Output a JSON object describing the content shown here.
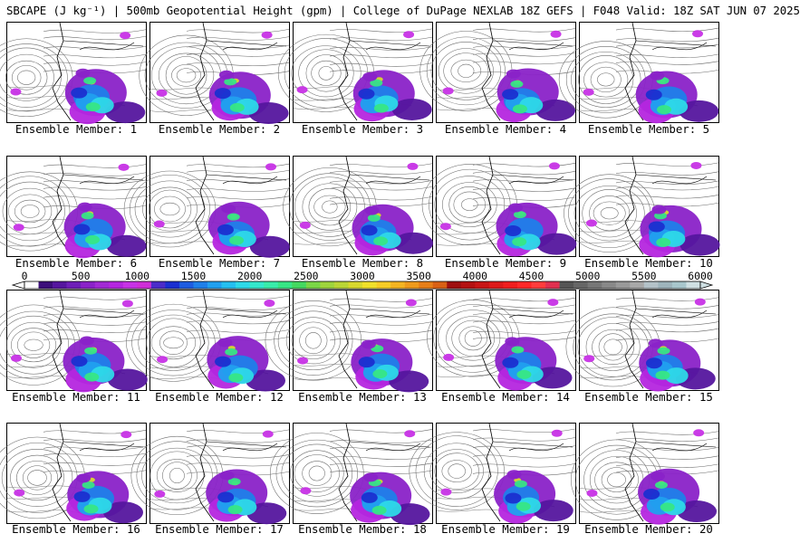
{
  "title": "SBCAPE (J kg⁻¹) | 500mb Geopotential Height (gpm) | College of DuPage NEXLAB 18Z GEFS | F048 Valid: 18Z SAT JUN 07 2025",
  "members": [
    {
      "label": "Ensemble Member: 1"
    },
    {
      "label": "Ensemble Member: 2"
    },
    {
      "label": "Ensemble Member: 3"
    },
    {
      "label": "Ensemble Member: 4"
    },
    {
      "label": "Ensemble Member: 5"
    },
    {
      "label": "Ensemble Member: 6"
    },
    {
      "label": "Ensemble Member: 7"
    },
    {
      "label": "Ensemble Member: 8"
    },
    {
      "label": "Ensemble Member: 9"
    },
    {
      "label": "Ensemble Member: 10"
    },
    {
      "label": "Ensemble Member: 11"
    },
    {
      "label": "Ensemble Member: 12"
    },
    {
      "label": "Ensemble Member: 13"
    },
    {
      "label": "Ensemble Member: 14"
    },
    {
      "label": "Ensemble Member: 15"
    },
    {
      "label": "Ensemble Member: 16"
    },
    {
      "label": "Ensemble Member: 17"
    },
    {
      "label": "Ensemble Member: 18"
    },
    {
      "label": "Ensemble Member: 19"
    },
    {
      "label": "Ensemble Member: 20"
    }
  ],
  "colorbar": {
    "ticks": [
      "0",
      "500",
      "1000",
      "1500",
      "2000",
      "2500",
      "3000",
      "3500",
      "4000",
      "4500",
      "5000",
      "5500",
      "6000"
    ],
    "colors": [
      "#ffffff",
      "#3c0f7a",
      "#55169e",
      "#6e1fb8",
      "#8a22c8",
      "#a12ad4",
      "#b526df",
      "#c732e6",
      "#cf2ed8",
      "#4b2cc9",
      "#1b2fd0",
      "#1e5ce0",
      "#1f7fe9",
      "#21a0ef",
      "#25bff0",
      "#2ed9e8",
      "#34e8cc",
      "#38ecaa",
      "#37e685",
      "#44d860",
      "#7ad646",
      "#9ed43c",
      "#bad535",
      "#d8d82e",
      "#f0e02a",
      "#f6cc26",
      "#f4b421",
      "#ee9a1c",
      "#e67e18",
      "#d86014",
      "#9e1010",
      "#b41212",
      "#c81616",
      "#dd1a1a",
      "#f01e1e",
      "#ff2828",
      "#ff3c3c",
      "#e03050",
      "#555555",
      "#666666",
      "#777777",
      "#888888",
      "#999999",
      "#a8a8a8",
      "#b4c2c8",
      "#9eb4bc",
      "#a8c6cc",
      "#cfdfe2"
    ]
  }
}
